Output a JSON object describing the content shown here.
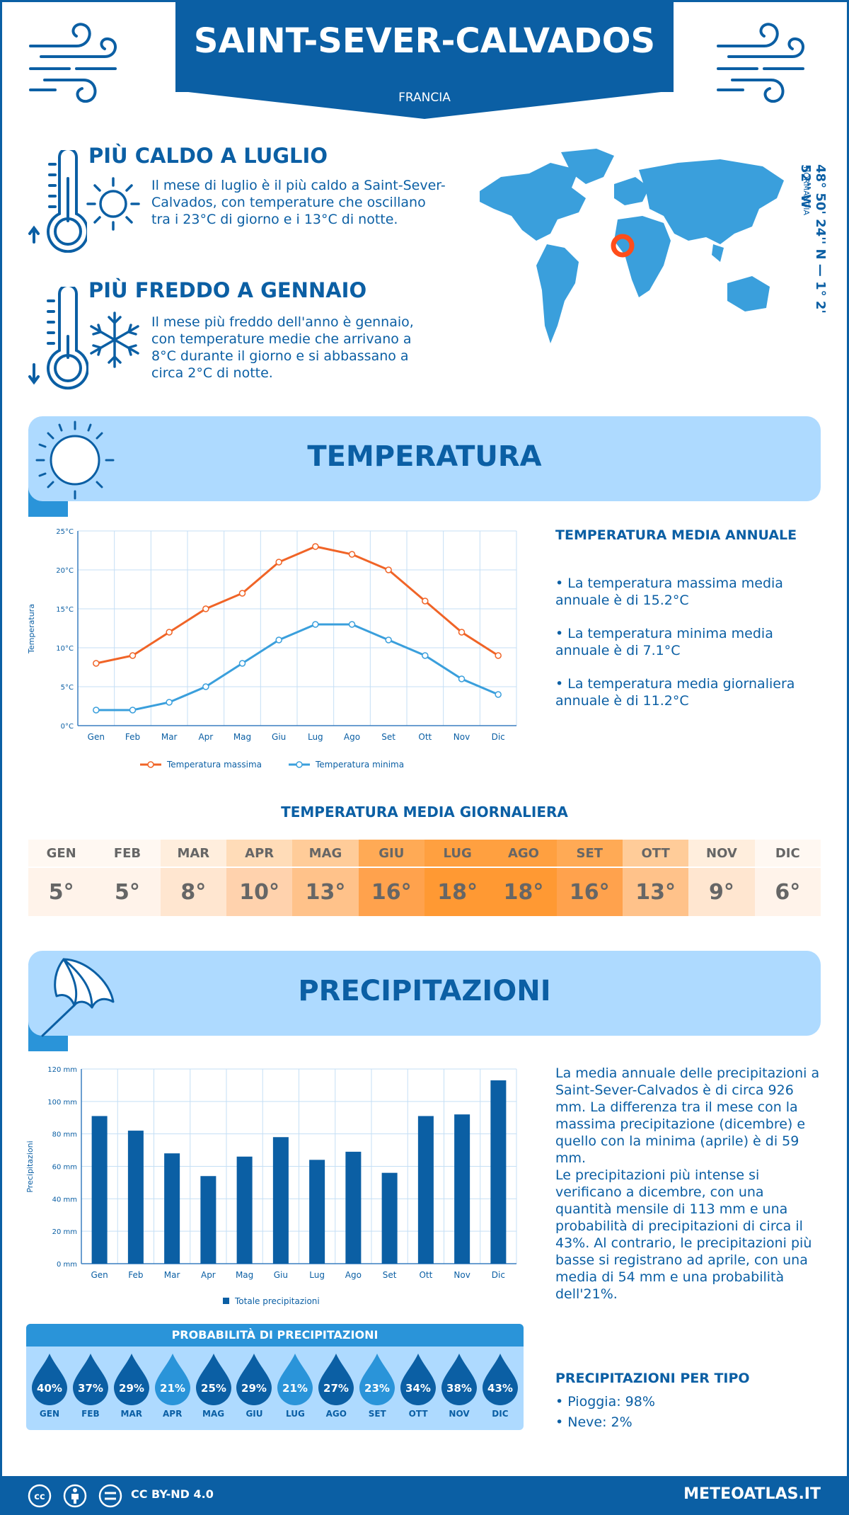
{
  "header": {
    "title": "SAINT-SEVER-CALVADOS",
    "country": "FRANCIA"
  },
  "coords": {
    "text": "48° 50' 24'' N — 1° 2' 52'' W",
    "region": "NORMANDIA"
  },
  "hot": {
    "title": "PIÙ CALDO A LUGLIO",
    "text": "Il mese di luglio è il più caldo a Saint-Sever-Calvados, con temperature che oscillano tra i 23°C di giorno e i 13°C di notte."
  },
  "cold": {
    "title": "PIÙ FREDDO A GENNAIO",
    "text": "Il mese più freddo dell'anno è gennaio, con temperature medie che arrivano a 8°C durante il giorno e si abbassano a circa 2°C di notte."
  },
  "temp_section": {
    "title": "TEMPERATURA",
    "side_title": "TEMPERATURA MEDIA ANNUALE",
    "bullets": [
      "• La temperatura massima media annuale è di 15.2°C",
      "• La temperatura minima media annuale è di 7.1°C",
      "• La temperatura media giornaliera annuale è di 11.2°C"
    ]
  },
  "daily": {
    "title": "TEMPERATURA MEDIA GIORNALIERA",
    "months": [
      "GEN",
      "FEB",
      "MAR",
      "APR",
      "MAG",
      "GIU",
      "LUG",
      "AGO",
      "SET",
      "OTT",
      "NOV",
      "DIC"
    ],
    "values": [
      "5°",
      "5°",
      "8°",
      "10°",
      "13°",
      "16°",
      "18°",
      "18°",
      "16°",
      "13°",
      "9°",
      "6°"
    ],
    "colors_head": [
      "#fff8f2",
      "#fff8f2",
      "#ffeedd",
      "#ffdcb8",
      "#ffcc99",
      "#ffaa55",
      "#ffa040",
      "#ffa040",
      "#ffaa55",
      "#ffcc99",
      "#ffeedd",
      "#fff8f2"
    ],
    "colors_val": [
      "#fff3ea",
      "#fff3ea",
      "#ffe6d0",
      "#ffd2ad",
      "#ffc28a",
      "#ffa24d",
      "#ff9933",
      "#ff9933",
      "#ffa24d",
      "#ffc28a",
      "#ffe6d0",
      "#fff3ea"
    ]
  },
  "prec_section": {
    "title": "PRECIPITAZIONI",
    "text1": "La media annuale delle precipitazioni a Saint-Sever-Calvados è di circa 926 mm. La differenza tra il mese con la massima precipitazione (dicembre) e quello con la minima (aprile) è di 59 mm.",
    "text2": "Le precipitazioni più intense si verificano a dicembre, con una quantità mensile di 113 mm e una probabilità di precipitazioni di circa il 43%. Al contrario, le precipitazioni più basse si registrano ad aprile, con una media di 54 mm e una probabilità dell'21%."
  },
  "prob": {
    "title": "PROBABILITÀ DI PRECIPITAZIONI",
    "months": [
      "GEN",
      "FEB",
      "MAR",
      "APR",
      "MAG",
      "GIU",
      "LUG",
      "AGO",
      "SET",
      "OTT",
      "NOV",
      "DIC"
    ],
    "values": [
      "40%",
      "37%",
      "29%",
      "21%",
      "25%",
      "29%",
      "21%",
      "27%",
      "23%",
      "34%",
      "38%",
      "43%"
    ],
    "colors": [
      "#0b5fa4",
      "#0b5fa4",
      "#0b5fa4",
      "#2a94d9",
      "#0b5fa4",
      "#0b5fa4",
      "#2a94d9",
      "#0b5fa4",
      "#2a94d9",
      "#0b5fa4",
      "#0b5fa4",
      "#0b5fa4"
    ]
  },
  "types": {
    "title": "PRECIPITAZIONI PER TIPO",
    "items": [
      "• Pioggia: 98%",
      "• Neve: 2%"
    ]
  },
  "footer": {
    "license": "CC BY-ND 4.0",
    "site": "METEOATLAS.IT"
  },
  "chart_data": [
    {
      "type": "line",
      "categories": [
        "Gen",
        "Feb",
        "Mar",
        "Apr",
        "Mag",
        "Giu",
        "Lug",
        "Ago",
        "Set",
        "Ott",
        "Nov",
        "Dic"
      ],
      "series": [
        {
          "name": "Temperatura massima",
          "values": [
            8,
            9,
            12,
            15,
            17,
            21,
            23,
            22,
            20,
            16,
            12,
            9
          ],
          "color": "#f06427"
        },
        {
          "name": "Temperatura minima",
          "values": [
            2,
            2,
            3,
            5,
            8,
            11,
            13,
            13,
            11,
            9,
            6,
            4
          ],
          "color": "#3a9fdc"
        }
      ],
      "ylabel": "Temperatura",
      "yticks": [
        "0°C",
        "5°C",
        "10°C",
        "15°C",
        "20°C",
        "25°C"
      ],
      "ylim": [
        0,
        25
      ],
      "grid": true,
      "legend": "bottom"
    },
    {
      "type": "bar",
      "categories": [
        "Gen",
        "Feb",
        "Mar",
        "Apr",
        "Mag",
        "Giu",
        "Lug",
        "Ago",
        "Set",
        "Ott",
        "Nov",
        "Dic"
      ],
      "series": [
        {
          "name": "Totale precipitazioni",
          "values": [
            91,
            82,
            68,
            54,
            66,
            78,
            64,
            69,
            56,
            91,
            92,
            113
          ],
          "color": "#0b5fa4"
        }
      ],
      "ylabel": "Precipitazioni",
      "yticks": [
        "0 mm",
        "20 mm",
        "40 mm",
        "60 mm",
        "80 mm",
        "100 mm",
        "120 mm"
      ],
      "ylim": [
        0,
        120
      ],
      "grid": true,
      "legend": "bottom"
    }
  ]
}
